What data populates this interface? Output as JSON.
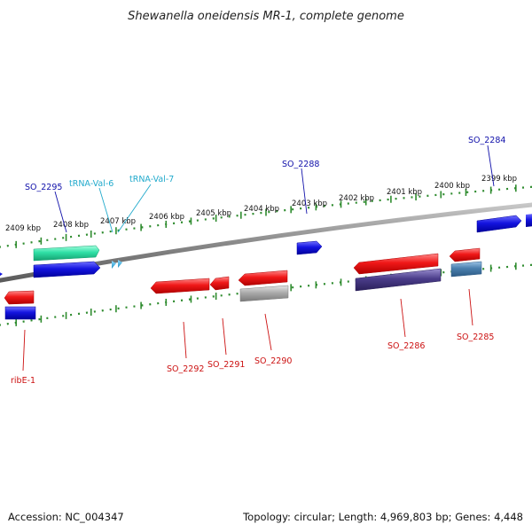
{
  "title": "Shewanella oneidensis MR-1, complete genome",
  "footer": {
    "accession": "Accession: NC_004347",
    "topology": "Topology: circular; Length: 4,969,803 bp; Genes: 4,448"
  },
  "ruler_labels": [
    "2409 kbp",
    "2408 kbp",
    "2407 kbp",
    "2406 kbp",
    "2405 kbp",
    "2404 kbp",
    "2403 kbp",
    "2402 kbp",
    "2401 kbp",
    "2400 kbp",
    "2399 kbp"
  ],
  "gene_labels": {
    "so_2295": "SO_2295",
    "trna_val_6": "tRNA-Val-6",
    "trna_val_7": "tRNA-Val-7",
    "so_2288": "SO_2288",
    "so_2284": "SO_2284",
    "ribe_1": "ribE-1",
    "so_2292": "SO_2292",
    "so_2291": "SO_2291",
    "so_2290": "SO_2290",
    "so_2286": "SO_2286",
    "so_2285": "SO_2285"
  },
  "colors": {
    "backbone": "#8a8a8a",
    "ruler_ticks": "#2e8b2e",
    "forward_cds": "#1010dd",
    "reverse_cds": "#ee1515",
    "trna": "#29a6d6",
    "trna_label": "#22aacc",
    "forward_label": "#1010aa",
    "reverse_label": "#cc1111",
    "teal_feature": "#2fe0a6",
    "purple_feature": "#4b3d8a",
    "gray_feature": "#a7a7a7",
    "steel_feature": "#4a7fae"
  }
}
